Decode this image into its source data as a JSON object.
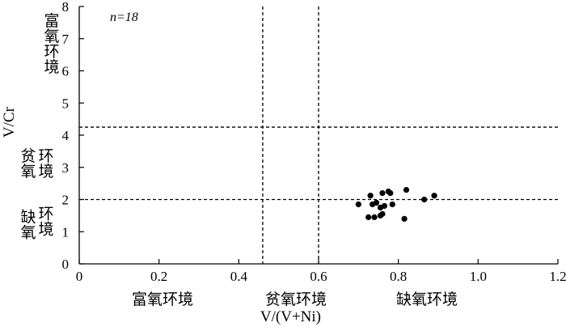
{
  "chart_data": {
    "type": "scatter",
    "title": "",
    "xlabel": "V/(V+Ni)",
    "ylabel": "V/Cr",
    "xlim": [
      0,
      1.2
    ],
    "ylim": [
      0,
      8
    ],
    "x_ticks": [
      "0",
      "0.2",
      "0.4",
      "0.6",
      "0.8",
      "1.0",
      "1.2"
    ],
    "y_ticks": [
      "0",
      "1",
      "2",
      "3",
      "4",
      "5",
      "6",
      "7",
      "8"
    ],
    "grid": false,
    "annotation_n": "n=18",
    "reference_lines": {
      "vertical": [
        0.46,
        0.6
      ],
      "horizontal": [
        2.0,
        4.25
      ],
      "style": "dashed"
    },
    "x_zone_labels": [
      "富氧环境",
      "贫氧环境",
      "缺氧环境"
    ],
    "y_zone_labels": [
      "缺氧环境",
      "贫氧环境",
      "富氧环境"
    ],
    "series": [
      {
        "points": [
          [
            0.7,
            1.85
          ],
          [
            0.725,
            1.45
          ],
          [
            0.73,
            2.12
          ],
          [
            0.735,
            1.85
          ],
          [
            0.74,
            1.45
          ],
          [
            0.745,
            1.9
          ],
          [
            0.755,
            1.5
          ],
          [
            0.755,
            1.75
          ],
          [
            0.76,
            1.55
          ],
          [
            0.76,
            2.2
          ],
          [
            0.765,
            1.8
          ],
          [
            0.775,
            2.25
          ],
          [
            0.78,
            2.2
          ],
          [
            0.785,
            1.85
          ],
          [
            0.815,
            1.4
          ],
          [
            0.82,
            2.3
          ],
          [
            0.865,
            2.0
          ],
          [
            0.89,
            2.12
          ]
        ],
        "color": "#000000"
      }
    ]
  }
}
